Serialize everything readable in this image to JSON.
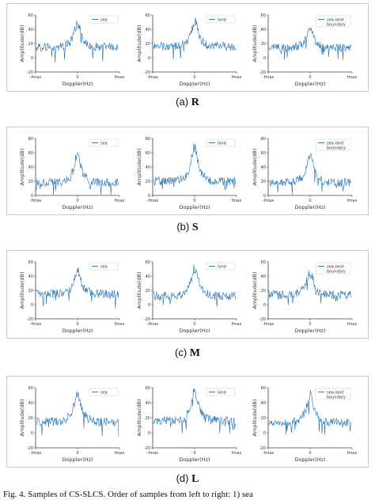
{
  "colors": {
    "series": "#1f6fb2",
    "axis": "#444444",
    "text": "#333333"
  },
  "panels": [
    {
      "caption_prefix": "(a)",
      "caption_letter": "R"
    },
    {
      "caption_prefix": "(b)",
      "caption_letter": "S"
    },
    {
      "caption_prefix": "(c)",
      "caption_letter": "M"
    },
    {
      "caption_prefix": "(d)",
      "caption_letter": "L"
    }
  ],
  "figure_caption": "Fig. 4.  Samples of CS-SLCS. Order of samples from left to right: 1) sea",
  "chart_data": [
    {
      "type": "line",
      "row": "R",
      "ylabel": "Amplitude(dB)",
      "xlabel": "Doppler(Hz)",
      "legend": [
        "sea"
      ],
      "legend_loc": "top-right",
      "ylim": [
        -20,
        60
      ],
      "yticks": [
        "-20",
        "0",
        "20",
        "40",
        "60"
      ],
      "xticks": [
        "-fmax",
        "0",
        "fmax"
      ],
      "peak_db": 50,
      "floor_db": 15,
      "grid": false
    },
    {
      "type": "line",
      "row": "R",
      "ylabel": "Amplitude(dB)",
      "xlabel": "Doppler(Hz)",
      "legend": [
        "land"
      ],
      "legend_loc": "top-right",
      "ylim": [
        -20,
        60
      ],
      "yticks": [
        "-20",
        "0",
        "20",
        "40",
        "60"
      ],
      "xticks": [
        "-fmax",
        "0",
        "fmax"
      ],
      "peak_db": 55,
      "floor_db": 16,
      "grid": false
    },
    {
      "type": "line",
      "row": "R",
      "ylabel": "Amplitude(dB)",
      "xlabel": "Doppler(Hz)",
      "legend": [
        "sea-land",
        "boundary"
      ],
      "legend_loc": "top-right",
      "ylim": [
        -20,
        60
      ],
      "yticks": [
        "-20",
        "0",
        "20",
        "40",
        "60"
      ],
      "xticks": [
        "-fmax",
        "0",
        "fmax"
      ],
      "peak_db": 45,
      "floor_db": 14,
      "grid": false
    },
    {
      "type": "line",
      "row": "S",
      "ylabel": "Amplitude(dB)",
      "xlabel": "Doppler(Hz)",
      "legend": [
        "sea"
      ],
      "legend_loc": "top-right",
      "ylim": [
        0,
        80
      ],
      "yticks": [
        "0",
        "20",
        "40",
        "60",
        "80"
      ],
      "xticks": [
        "-fmax",
        "0",
        "fmax"
      ],
      "peak_db": 60,
      "floor_db": 18,
      "grid": false
    },
    {
      "type": "line",
      "row": "S",
      "ylabel": "Amplitude(dB)",
      "xlabel": "Doppler(Hz)",
      "legend": [
        "land"
      ],
      "legend_loc": "top-right",
      "ylim": [
        0,
        80
      ],
      "yticks": [
        "0",
        "20",
        "40",
        "60",
        "80"
      ],
      "xticks": [
        "-fmax",
        "0",
        "fmax"
      ],
      "peak_db": 72,
      "floor_db": 20,
      "grid": false
    },
    {
      "type": "line",
      "row": "S",
      "ylabel": "Amplitude(dB)",
      "xlabel": "Doppler(Hz)",
      "legend": [
        "sea-land",
        "boundary"
      ],
      "legend_loc": "top-right",
      "ylim": [
        0,
        80
      ],
      "yticks": [
        "0",
        "20",
        "40",
        "60",
        "80"
      ],
      "xticks": [
        "-fmax",
        "0",
        "fmax"
      ],
      "peak_db": 60,
      "floor_db": 18,
      "grid": false
    },
    {
      "type": "line",
      "row": "M",
      "ylabel": "Amplitude(dB)",
      "xlabel": "Doppler(Hz)",
      "legend": [
        "sea"
      ],
      "legend_loc": "top-right",
      "ylim": [
        -20,
        60
      ],
      "yticks": [
        "-20",
        "0",
        "20",
        "40",
        "60"
      ],
      "xticks": [
        "-fmax",
        "0",
        "fmax"
      ],
      "peak_db": 48,
      "floor_db": 15,
      "grid": false
    },
    {
      "type": "line",
      "row": "M",
      "ylabel": "Amplitude(dB)",
      "xlabel": "Doppler(Hz)",
      "legend": [
        "land"
      ],
      "legend_loc": "top-right",
      "ylim": [
        -20,
        60
      ],
      "yticks": [
        "-20",
        "0",
        "20",
        "40",
        "60"
      ],
      "xticks": [
        "-fmax",
        "0",
        "fmax"
      ],
      "peak_db": 55,
      "floor_db": 12,
      "grid": false
    },
    {
      "type": "line",
      "row": "M",
      "ylabel": "Amplitude(dB)",
      "xlabel": "Doppler(Hz)",
      "legend": [
        "sea-land",
        "boundary"
      ],
      "legend_loc": "top-right",
      "ylim": [
        -20,
        60
      ],
      "yticks": [
        "-20",
        "0",
        "20",
        "40",
        "60"
      ],
      "xticks": [
        "-fmax",
        "0",
        "fmax"
      ],
      "peak_db": 50,
      "floor_db": 14,
      "grid": false
    },
    {
      "type": "line",
      "row": "L",
      "ylabel": "Amplitude(dB)",
      "xlabel": "Doppler(Hz)",
      "legend": [
        "sea"
      ],
      "legend_loc": "top-right",
      "ylim": [
        -20,
        60
      ],
      "yticks": [
        "-20",
        "0",
        "20",
        "40",
        "60"
      ],
      "xticks": [
        "-fmax",
        "0",
        "fmax"
      ],
      "peak_db": 55,
      "floor_db": 15,
      "grid": false
    },
    {
      "type": "line",
      "row": "L",
      "ylabel": "Amplitude(dB)",
      "xlabel": "Doppler(Hz)",
      "legend": [
        "land"
      ],
      "legend_loc": "top-right",
      "ylim": [
        -20,
        60
      ],
      "yticks": [
        "-20",
        "0",
        "20",
        "40",
        "60"
      ],
      "xticks": [
        "-fmax",
        "0",
        "fmax"
      ],
      "peak_db": 60,
      "floor_db": 16,
      "grid": false
    },
    {
      "type": "line",
      "row": "L",
      "ylabel": "Amplitude(dB)",
      "xlabel": "Doppler(Hz)",
      "legend": [
        "sea-land",
        "boundary"
      ],
      "legend_loc": "top-right",
      "ylim": [
        -20,
        60
      ],
      "yticks": [
        "-20",
        "0",
        "20",
        "40",
        "60"
      ],
      "xticks": [
        "-fmax",
        "0",
        "fmax"
      ],
      "peak_db": 52,
      "floor_db": 14,
      "grid": false
    }
  ]
}
